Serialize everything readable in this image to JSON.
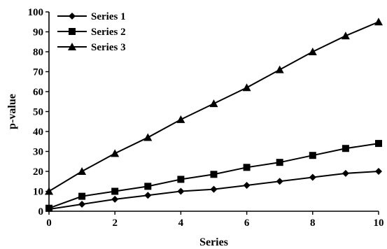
{
  "chart_data": {
    "type": "line",
    "title": "",
    "xlabel": "Series",
    "ylabel": "p-value",
    "xlim": [
      0,
      10
    ],
    "ylim": [
      0,
      100
    ],
    "x_ticks": [
      0,
      2,
      4,
      6,
      8,
      10
    ],
    "y_ticks": [
      0,
      10,
      20,
      30,
      40,
      50,
      60,
      70,
      80,
      90,
      100
    ],
    "grid": false,
    "legend_position": "top-left",
    "x": [
      0,
      1,
      2,
      3,
      4,
      5,
      6,
      7,
      8,
      9,
      10
    ],
    "series": [
      {
        "name": "Series 1",
        "marker": "diamond",
        "values": [
          1,
          3.5,
          6,
          8,
          10,
          11,
          13,
          15,
          17,
          19,
          20
        ]
      },
      {
        "name": "Series 2",
        "marker": "square",
        "values": [
          1.5,
          7.5,
          10,
          12.5,
          16,
          18.5,
          22,
          24.5,
          28,
          31.5,
          34
        ]
      },
      {
        "name": "Series 3",
        "marker": "triangle",
        "values": [
          10,
          20,
          29,
          37,
          46,
          54,
          62,
          71,
          80,
          88,
          95
        ]
      }
    ]
  }
}
